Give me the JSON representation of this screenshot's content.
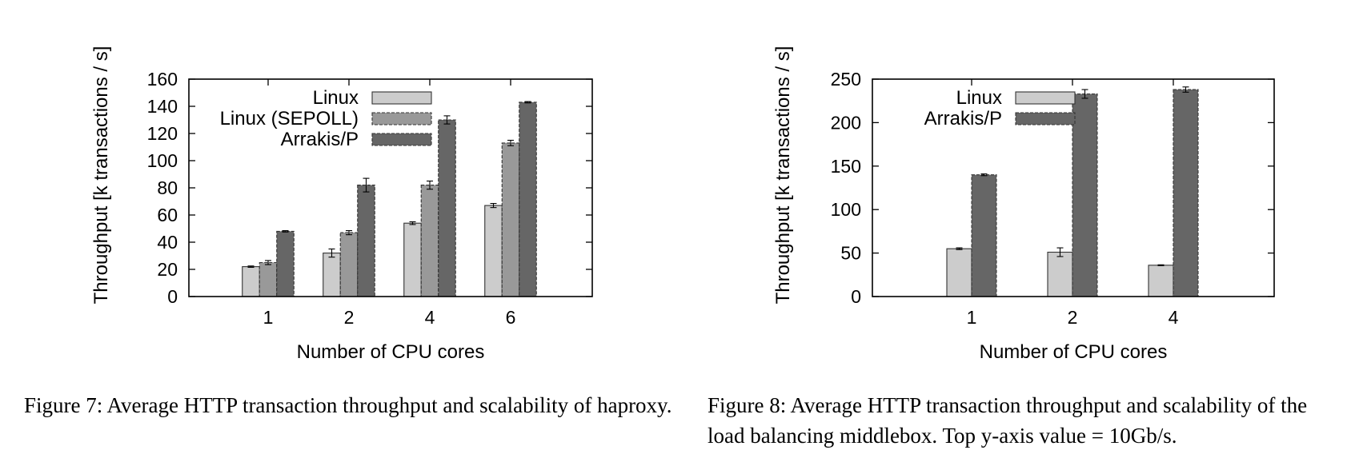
{
  "chart_data": [
    {
      "type": "bar",
      "xlabel": "Number of CPU cores",
      "ylabel": "Throughput [k transactions / s]",
      "categories": [
        "1",
        "2",
        "4",
        "6"
      ],
      "ylim": [
        0,
        160
      ],
      "yticks": [
        0,
        20,
        40,
        60,
        80,
        100,
        120,
        140,
        160
      ],
      "legend_position": "top-left",
      "series": [
        {
          "name": "Linux",
          "color": "#cccccc",
          "values": [
            22,
            32,
            54,
            67
          ],
          "errors": [
            0.5,
            3,
            1,
            1.5
          ]
        },
        {
          "name": "Linux (SEPOLL)",
          "color": "#999999",
          "values": [
            25,
            47,
            82,
            113
          ],
          "errors": [
            1.5,
            1.5,
            3,
            2
          ]
        },
        {
          "name": "Arrakis/P",
          "color": "#666666",
          "values": [
            48,
            82,
            130,
            143
          ],
          "errors": [
            0.5,
            5,
            3,
            0.5
          ]
        }
      ]
    },
    {
      "type": "bar",
      "xlabel": "Number of CPU cores",
      "ylabel": "Throughput [k transactions / s]",
      "categories": [
        "1",
        "2",
        "4"
      ],
      "ylim": [
        0,
        250
      ],
      "yticks": [
        0,
        50,
        100,
        150,
        200,
        250
      ],
      "legend_position": "top-left",
      "series": [
        {
          "name": "Linux",
          "color": "#cccccc",
          "values": [
            55,
            51,
            36
          ],
          "errors": [
            1,
            5,
            0.5
          ]
        },
        {
          "name": "Arrakis/P",
          "color": "#666666",
          "values": [
            140,
            233,
            238
          ],
          "errors": [
            1,
            5,
            3
          ]
        }
      ]
    }
  ],
  "captions": {
    "fig7": "Figure 7: Average HTTP transaction throughput and scalability of haproxy.",
    "fig8": "Figure 8: Average HTTP transaction throughput and scalability of the load balancing middlebox. Top y-axis value = 10Gb/s."
  }
}
